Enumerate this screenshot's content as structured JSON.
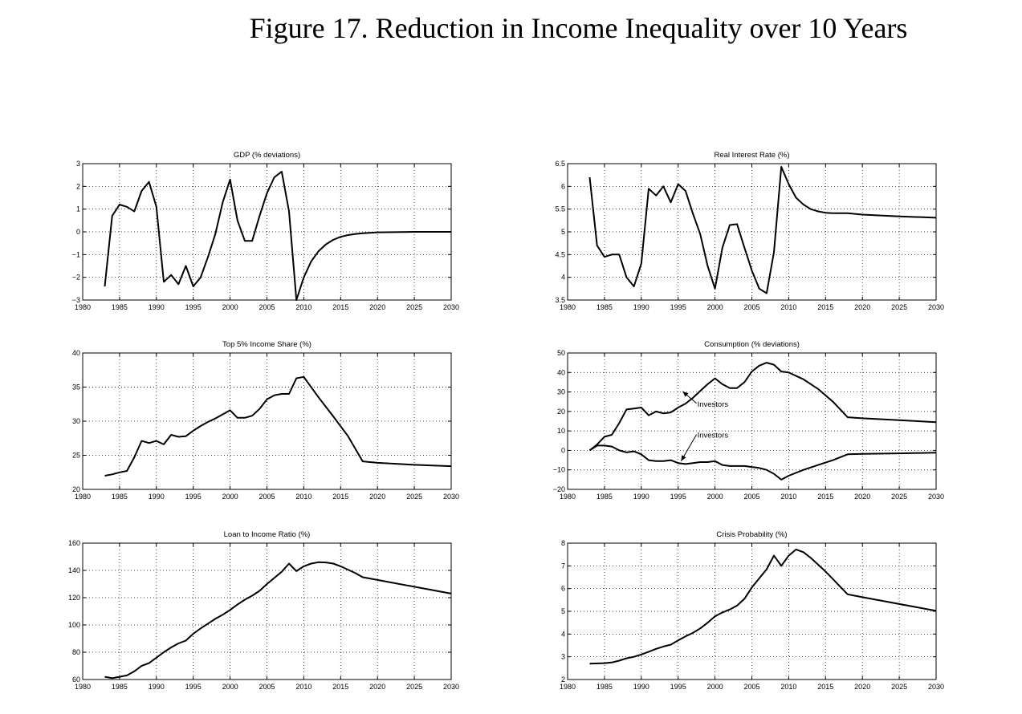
{
  "figure": {
    "title": "Figure 17. Reduction in Income Inequality over 10 Years"
  },
  "chart_data": [
    {
      "type": "line",
      "title": "GDP (% deviations)",
      "xlim": [
        1980,
        2030
      ],
      "ylim": [
        -3,
        3
      ],
      "xticks": [
        1980,
        1985,
        1990,
        1995,
        2000,
        2005,
        2010,
        2015,
        2020,
        2025,
        2030
      ],
      "yticks": [
        -3,
        -2,
        -1,
        0,
        1,
        2,
        3
      ],
      "ytick_labels": [
        "−3",
        "−2",
        "−1",
        "0",
        "1",
        "2",
        "3"
      ],
      "grid": true,
      "series": [
        {
          "x": [
            1983,
            1984,
            1985,
            1986,
            1987,
            1988,
            1989,
            1990,
            1991,
            1992,
            1993,
            1994,
            1995,
            1996,
            1997,
            1998,
            1999,
            2000,
            2001,
            2002,
            2003,
            2004,
            2005,
            2006,
            2007,
            2008,
            2009,
            2010,
            2011,
            2012,
            2013,
            2014,
            2015,
            2016,
            2017,
            2018,
            2020,
            2025,
            2030
          ],
          "y": [
            -2.4,
            0.7,
            1.2,
            1.1,
            0.9,
            1.8,
            2.2,
            1.1,
            -2.2,
            -1.9,
            -2.3,
            -1.5,
            -2.4,
            -2.0,
            -1.1,
            -0.1,
            1.3,
            2.3,
            0.5,
            -0.4,
            -0.4,
            0.7,
            1.7,
            2.4,
            2.65,
            0.9,
            -3.0,
            -2.0,
            -1.3,
            -0.85,
            -0.55,
            -0.35,
            -0.22,
            -0.14,
            -0.09,
            -0.06,
            -0.02,
            0,
            0
          ]
        }
      ],
      "annotations": []
    },
    {
      "type": "line",
      "title": "Real Interest Rate (%)",
      "xlim": [
        1980,
        2030
      ],
      "ylim": [
        3.5,
        6.5
      ],
      "xticks": [
        1980,
        1985,
        1990,
        1995,
        2000,
        2005,
        2010,
        2015,
        2020,
        2025,
        2030
      ],
      "yticks": [
        3.5,
        4,
        4.5,
        5,
        5.5,
        6,
        6.5
      ],
      "ytick_labels": [
        "3.5",
        "4",
        "4.5",
        "5",
        "5.5",
        "6",
        "6.5"
      ],
      "grid": true,
      "series": [
        {
          "x": [
            1983,
            1984,
            1985,
            1986,
            1987,
            1988,
            1989,
            1990,
            1991,
            1992,
            1993,
            1994,
            1995,
            1996,
            1997,
            1998,
            1999,
            2000,
            2001,
            2002,
            2003,
            2004,
            2005,
            2006,
            2007,
            2008,
            2009,
            2010,
            2011,
            2012,
            2013,
            2014,
            2015,
            2016,
            2017,
            2018,
            2020,
            2025,
            2030
          ],
          "y": [
            6.2,
            4.7,
            4.45,
            4.5,
            4.5,
            4.0,
            3.8,
            4.3,
            5.95,
            5.8,
            6.0,
            5.65,
            6.05,
            5.9,
            5.4,
            4.95,
            4.25,
            3.75,
            4.65,
            5.15,
            5.17,
            4.65,
            4.15,
            3.75,
            3.65,
            4.55,
            6.43,
            6.05,
            5.75,
            5.6,
            5.5,
            5.45,
            5.42,
            5.41,
            5.41,
            5.41,
            5.38,
            5.34,
            5.31
          ]
        }
      ],
      "annotations": []
    },
    {
      "type": "line",
      "title": "Top 5% Income Share (%)",
      "xlim": [
        1980,
        2030
      ],
      "ylim": [
        20,
        40
      ],
      "xticks": [
        1980,
        1985,
        1990,
        1995,
        2000,
        2005,
        2010,
        2015,
        2020,
        2025,
        2030
      ],
      "yticks": [
        20,
        25,
        30,
        35,
        40
      ],
      "ytick_labels": [
        "20",
        "25",
        "30",
        "35",
        "40"
      ],
      "grid": true,
      "series": [
        {
          "x": [
            1983,
            1984,
            1985,
            1986,
            1987,
            1988,
            1989,
            1990,
            1991,
            1992,
            1993,
            1994,
            1995,
            1996,
            1997,
            1998,
            1999,
            2000,
            2001,
            2002,
            2003,
            2004,
            2005,
            2006,
            2007,
            2008,
            2009,
            2010,
            2012,
            2014,
            2016,
            2018,
            2020,
            2025,
            2030
          ],
          "y": [
            22.0,
            22.2,
            22.5,
            22.7,
            24.7,
            27.1,
            26.8,
            27.1,
            26.6,
            28.0,
            27.7,
            27.8,
            28.6,
            29.3,
            29.9,
            30.4,
            31.0,
            31.6,
            30.5,
            30.5,
            30.8,
            31.8,
            33.2,
            33.8,
            34.0,
            34.0,
            36.3,
            36.5,
            33.5,
            30.7,
            27.8,
            24.1,
            23.9,
            23.6,
            23.4
          ]
        }
      ],
      "annotations": []
    },
    {
      "type": "line",
      "title": "Consumption (% deviations)",
      "xlim": [
        1980,
        2030
      ],
      "ylim": [
        -20,
        50
      ],
      "xticks": [
        1980,
        1985,
        1990,
        1995,
        2000,
        2005,
        2010,
        2015,
        2020,
        2025,
        2030
      ],
      "yticks": [
        -20,
        -10,
        0,
        10,
        20,
        30,
        40,
        50
      ],
      "ytick_labels": [
        "−20",
        "−10",
        "0",
        "10",
        "20",
        "30",
        "40",
        "50"
      ],
      "grid": true,
      "series": [
        {
          "x": [
            1983,
            1984,
            1985,
            1986,
            1987,
            1988,
            1989,
            1990,
            1991,
            1992,
            1993,
            1994,
            1995,
            1996,
            1997,
            1998,
            1999,
            2000,
            2001,
            2002,
            2003,
            2004,
            2005,
            2006,
            2007,
            2008,
            2009,
            2010,
            2012,
            2014,
            2016,
            2018,
            2020,
            2025,
            2030
          ],
          "y": [
            0,
            3,
            7,
            8,
            14,
            21,
            21.5,
            22,
            18,
            20,
            19,
            19.5,
            22,
            24,
            27,
            30.5,
            34,
            37,
            34,
            32,
            32,
            35,
            40.5,
            43.5,
            45,
            44,
            40.5,
            40,
            36.5,
            31.5,
            25,
            17,
            16.5,
            15.5,
            14.5
          ]
        },
        {
          "x": [
            1983,
            1984,
            1985,
            1986,
            1987,
            1988,
            1989,
            1990,
            1991,
            1992,
            1993,
            1994,
            1995,
            1996,
            1997,
            1998,
            1999,
            2000,
            2001,
            2002,
            2003,
            2004,
            2005,
            2006,
            2007,
            2008,
            2009,
            2010,
            2012,
            2014,
            2016,
            2018,
            2020,
            2025,
            2030
          ],
          "y": [
            0,
            2.5,
            2.5,
            2,
            0,
            -1,
            -0.5,
            -2,
            -5,
            -5.5,
            -5.5,
            -5,
            -6.5,
            -7,
            -6.5,
            -6,
            -6,
            -5.5,
            -7.5,
            -8,
            -8,
            -8,
            -8.5,
            -9,
            -10,
            -12,
            -15,
            -13,
            -10,
            -7.5,
            -5,
            -2,
            -1.8,
            -1.5,
            -1.2
          ]
        }
      ],
      "annotations": [
        {
          "text": "Investors",
          "x": 1997.6,
          "y": 22.5,
          "arrow_to": [
            1995.6,
            30.3
          ]
        },
        {
          "text": "Investors",
          "x": 1997.6,
          "y": 6.5,
          "arrow_to": [
            1995.4,
            -5.5
          ]
        }
      ]
    },
    {
      "type": "line",
      "title": "Loan to Income Ratio (%)",
      "xlim": [
        1980,
        2030
      ],
      "ylim": [
        60,
        160
      ],
      "xticks": [
        1980,
        1985,
        1990,
        1995,
        2000,
        2005,
        2010,
        2015,
        2020,
        2025,
        2030
      ],
      "yticks": [
        60,
        80,
        100,
        120,
        140,
        160
      ],
      "ytick_labels": [
        "60",
        "80",
        "100",
        "120",
        "140",
        "160"
      ],
      "grid": true,
      "series": [
        {
          "x": [
            1983,
            1984,
            1985,
            1986,
            1987,
            1988,
            1989,
            1990,
            1991,
            1992,
            1993,
            1994,
            1995,
            1996,
            1997,
            1998,
            1999,
            2000,
            2001,
            2002,
            2003,
            2004,
            2005,
            2006,
            2007,
            2008,
            2009,
            2010,
            2011,
            2012,
            2013,
            2014,
            2015,
            2016,
            2017,
            2018,
            2020,
            2025,
            2030
          ],
          "y": [
            62,
            61,
            62,
            63,
            66,
            70,
            72,
            76,
            80,
            83.5,
            86.5,
            88.5,
            93.5,
            97.5,
            101,
            104.5,
            107.5,
            111,
            115,
            118.5,
            121.5,
            125,
            130,
            134.5,
            139,
            145,
            139.5,
            143,
            145,
            146,
            145.8,
            145,
            143,
            140.5,
            138,
            135,
            133,
            128,
            123
          ]
        }
      ],
      "annotations": []
    },
    {
      "type": "line",
      "title": "Crisis Probability (%)",
      "xlim": [
        1980,
        2030
      ],
      "ylim": [
        2,
        8
      ],
      "xticks": [
        1980,
        1985,
        1990,
        1995,
        2000,
        2005,
        2010,
        2015,
        2020,
        2025,
        2030
      ],
      "yticks": [
        2,
        3,
        4,
        5,
        6,
        7,
        8
      ],
      "ytick_labels": [
        "2",
        "3",
        "4",
        "5",
        "6",
        "7",
        "8"
      ],
      "grid": true,
      "series": [
        {
          "x": [
            1983,
            1985,
            1986,
            1987,
            1988,
            1989,
            1990,
            1991,
            1992,
            1993,
            1994,
            1995,
            1996,
            1997,
            1998,
            1999,
            2000,
            2001,
            2002,
            2003,
            2004,
            2005,
            2006,
            2007,
            2008,
            2009,
            2010,
            2011,
            2012,
            2013,
            2014,
            2015,
            2016,
            2017,
            2018,
            2020,
            2025,
            2030
          ],
          "y": [
            2.7,
            2.72,
            2.75,
            2.83,
            2.93,
            3.0,
            3.1,
            3.22,
            3.35,
            3.45,
            3.53,
            3.72,
            3.9,
            4.05,
            4.25,
            4.5,
            4.78,
            4.95,
            5.08,
            5.25,
            5.55,
            6.05,
            6.45,
            6.85,
            7.45,
            7.0,
            7.45,
            7.72,
            7.6,
            7.35,
            7.05,
            6.75,
            6.42,
            6.08,
            5.75,
            5.62,
            5.32,
            5.02
          ]
        }
      ],
      "annotations": []
    }
  ]
}
